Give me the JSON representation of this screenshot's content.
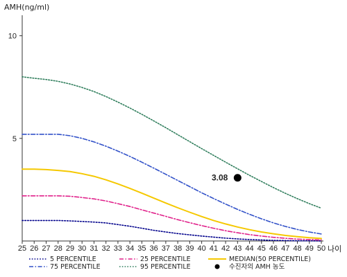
{
  "chart_data": {
    "type": "line",
    "ylabel": "AMH(ng/ml)",
    "xlabel": "나이",
    "x": [
      25,
      26,
      27,
      28,
      29,
      30,
      31,
      32,
      33,
      34,
      35,
      36,
      37,
      38,
      39,
      40,
      41,
      42,
      43,
      44,
      45,
      46,
      47,
      48,
      49,
      50
    ],
    "xticks": [
      "25",
      "26",
      "27",
      "28",
      "29",
      "30",
      "31",
      "32",
      "33",
      "34",
      "35",
      "36",
      "37",
      "38",
      "39",
      "40",
      "41",
      "42",
      "43",
      "44",
      "45",
      "46",
      "47",
      "48",
      "49",
      "50"
    ],
    "yticks": [
      "5",
      "10"
    ],
    "ytick_values": [
      5,
      10
    ],
    "ylim": [
      0,
      11
    ],
    "xlim": [
      25,
      50
    ],
    "grid": false,
    "series": [
      {
        "name": "5 PERCENTILE",
        "color": "#00008b",
        "style": "dot",
        "values": [
          1.0,
          1.0,
          1.0,
          1.0,
          0.98,
          0.95,
          0.92,
          0.88,
          0.8,
          0.72,
          0.62,
          0.52,
          0.44,
          0.36,
          0.3,
          0.24,
          0.19,
          0.14,
          0.1,
          0.07,
          0.05,
          0.03,
          0.02,
          0.01,
          0.01,
          0.0
        ]
      },
      {
        "name": "25 PERCENTILE",
        "color": "#e0208a",
        "style": "dashdot",
        "values": [
          2.2,
          2.2,
          2.2,
          2.2,
          2.18,
          2.12,
          2.05,
          1.95,
          1.82,
          1.68,
          1.52,
          1.36,
          1.2,
          1.04,
          0.89,
          0.75,
          0.62,
          0.5,
          0.4,
          0.31,
          0.24,
          0.18,
          0.13,
          0.09,
          0.07,
          0.05
        ]
      },
      {
        "name": "MEDIAN(50 PERCENTILE)",
        "color": "#f5c800",
        "style": "solid",
        "values": [
          3.5,
          3.5,
          3.48,
          3.44,
          3.38,
          3.28,
          3.15,
          2.98,
          2.78,
          2.56,
          2.33,
          2.09,
          1.85,
          1.62,
          1.4,
          1.19,
          1.0,
          0.83,
          0.68,
          0.55,
          0.44,
          0.35,
          0.27,
          0.21,
          0.16,
          0.12
        ]
      },
      {
        "name": "75 PERCENTILE",
        "color": "#3050c8",
        "style": "dashdot",
        "values": [
          5.2,
          5.2,
          5.2,
          5.2,
          5.13,
          5.0,
          4.83,
          4.62,
          4.38,
          4.12,
          3.84,
          3.55,
          3.25,
          2.95,
          2.65,
          2.35,
          2.07,
          1.8,
          1.54,
          1.3,
          1.08,
          0.88,
          0.71,
          0.56,
          0.44,
          0.34
        ]
      },
      {
        "name": "95 PERCENTILE",
        "color": "#2e7d5b",
        "style": "dot",
        "values": [
          8.0,
          7.93,
          7.87,
          7.78,
          7.65,
          7.48,
          7.28,
          7.04,
          6.77,
          6.48,
          6.17,
          5.85,
          5.52,
          5.18,
          4.84,
          4.5,
          4.17,
          3.84,
          3.52,
          3.2,
          2.9,
          2.6,
          2.32,
          2.06,
          1.82,
          1.6
        ]
      }
    ],
    "point": {
      "name": "수진자의 AMH 농도",
      "x": 43,
      "y": 3.08,
      "label": "3.08",
      "color": "#000000"
    },
    "legend_position": "bottom"
  }
}
